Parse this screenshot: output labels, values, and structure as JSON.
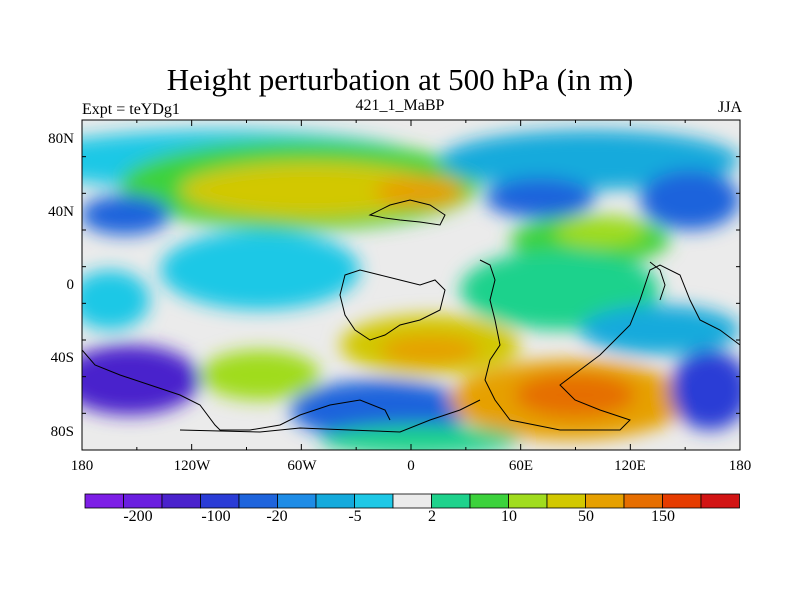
{
  "title": "Height perturbation at 500 hPa (in m)",
  "subtitle_left": "Expt = teYDg1",
  "subtitle_center": "421_1_MaBP",
  "subtitle_right": "JJA",
  "colors": {
    "levels_colors": [
      "#7d1ee6",
      "#6a1ee0",
      "#4a22cc",
      "#2a3cd6",
      "#1e64dc",
      "#1e8ce6",
      "#14aadc",
      "#1ec8e6",
      "#ebebeb",
      "#1ed28c",
      "#3cd23c",
      "#a0dc1e",
      "#d2c800",
      "#e6a000",
      "#e66e00",
      "#e63c00",
      "#d21414"
    ]
  },
  "chart_data": {
    "type": "heatmap",
    "title": "Height perturbation at 500 hPa (in m)",
    "x_axis": {
      "ticks": [
        "180",
        "120W",
        "60W",
        "0",
        "60E",
        "120E",
        "180"
      ],
      "range": [
        -180,
        180
      ]
    },
    "y_axis": {
      "ticks": [
        "80N",
        "40N",
        "0",
        "40S",
        "80S"
      ],
      "range": [
        -90,
        90
      ]
    },
    "colorbar_labels": [
      "-200",
      "-100",
      "-20",
      "-5",
      "2",
      "10",
      "50",
      "150"
    ]
  }
}
